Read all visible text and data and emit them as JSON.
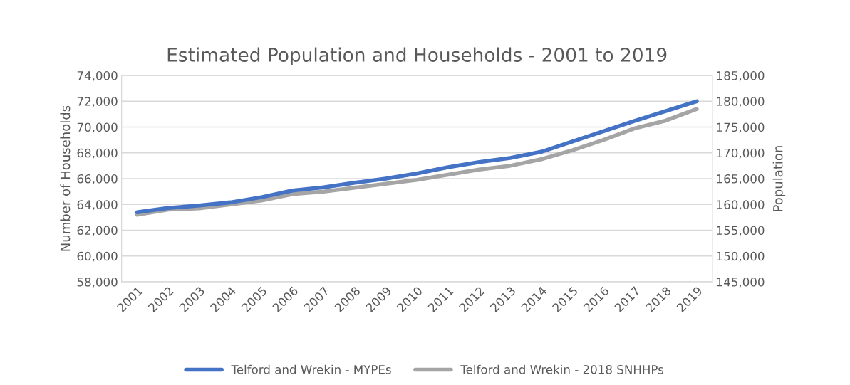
{
  "chart_data": {
    "type": "line",
    "title": "Estimated Population and Households - 2001 to 2019",
    "ylabel": "Number of Households",
    "y2label": "Population",
    "categories": [
      "2001",
      "2002",
      "2003",
      "2004",
      "2005",
      "2006",
      "2007",
      "2008",
      "2009",
      "2010",
      "2011",
      "2012",
      "2013",
      "2014",
      "2015",
      "2016",
      "2017",
      "2018",
      "2019"
    ],
    "series": [
      {
        "name": "Telford and Wrekin - MYPEs",
        "color": "#4472c4",
        "axis": "y2",
        "values": [
          158500,
          159300,
          159800,
          160400,
          161400,
          162700,
          163300,
          164200,
          165000,
          166000,
          167200,
          168200,
          169000,
          170200,
          172200,
          174200,
          176200,
          178100,
          180000
        ]
      },
      {
        "name": "Telford and Wrekin - 2018 SNHHPs",
        "color": "#a5a5a5",
        "axis": "y",
        "values": [
          63200,
          63600,
          63700,
          64000,
          64300,
          64800,
          65000,
          65300,
          65600,
          65900,
          66300,
          66700,
          67000,
          67500,
          68200,
          69000,
          69900,
          70500,
          71400
        ]
      }
    ],
    "ylim": [
      58000,
      74000
    ],
    "yticks": [
      {
        "value": 58000,
        "label": "58,000"
      },
      {
        "value": 60000,
        "label": "60,000"
      },
      {
        "value": 62000,
        "label": "62,000"
      },
      {
        "value": 64000,
        "label": "64,000"
      },
      {
        "value": 66000,
        "label": "66,000"
      },
      {
        "value": 68000,
        "label": "68,000"
      },
      {
        "value": 70000,
        "label": "70,000"
      },
      {
        "value": 72000,
        "label": "72,000"
      },
      {
        "value": 74000,
        "label": "74,000"
      }
    ],
    "y2lim": [
      145000,
      185000
    ],
    "y2ticks": [
      {
        "value": 145000,
        "label": "145,000"
      },
      {
        "value": 150000,
        "label": "150,000"
      },
      {
        "value": 155000,
        "label": "155,000"
      },
      {
        "value": 160000,
        "label": "160,000"
      },
      {
        "value": 165000,
        "label": "165,000"
      },
      {
        "value": 170000,
        "label": "170,000"
      },
      {
        "value": 175000,
        "label": "175,000"
      },
      {
        "value": 180000,
        "label": "180,000"
      },
      {
        "value": 185000,
        "label": "185,000"
      }
    ],
    "grid": "y",
    "legend": "bottom",
    "marker": "none",
    "line_style": "solid"
  }
}
